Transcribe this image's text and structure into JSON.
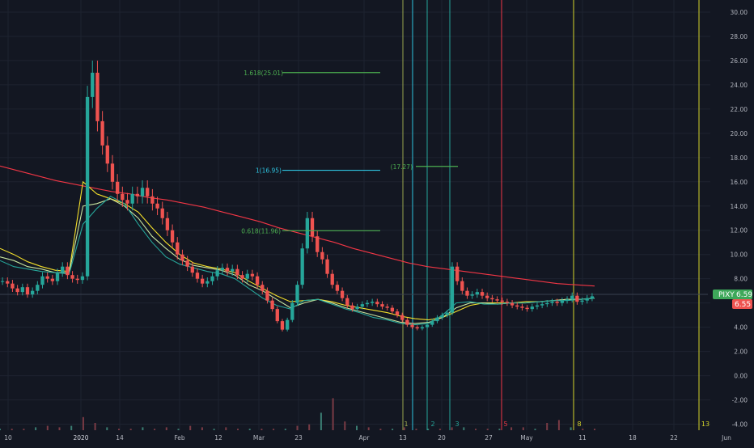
{
  "chart_data": {
    "type": "candlestick",
    "symbol": "PIXY",
    "last_price": "6.59",
    "prev_price": "6.55",
    "y_range": [
      -4.5,
      31
    ],
    "y_ticks": [
      "30.00",
      "28.00",
      "26.00",
      "24.00",
      "22.00",
      "20.00",
      "18.00",
      "16.00",
      "14.00",
      "12.00",
      "10.00",
      "8.00",
      "6.00",
      "4.00",
      "2.00",
      "0.00",
      "-2.00",
      "-4.00"
    ],
    "x_ticks": [
      "10",
      "2020",
      "14",
      "Feb",
      "12",
      "Mar",
      "23",
      "Apr",
      "13",
      "20",
      "27",
      "May",
      "11",
      "18",
      "22",
      "Jun"
    ],
    "grid": true,
    "price_path": [
      7.8,
      7.6,
      7.2,
      6.9,
      7.3,
      6.7,
      7.0,
      7.5,
      8.2,
      8.0,
      7.8,
      8.5,
      9.0,
      8.3,
      8.0,
      7.9,
      8.2,
      23,
      25,
      21,
      19,
      17.5,
      16,
      15,
      14.5,
      14.2,
      15,
      14.8,
      15.5,
      14.8,
      14.2,
      13.8,
      13,
      12,
      11,
      10,
      9.5,
      9.0,
      8.5,
      8.0,
      7.6,
      7.8,
      8.2,
      8.7,
      8.9,
      8.6,
      8.8,
      8.3,
      8.0,
      8.4,
      8.2,
      7.5,
      7.0,
      6.2,
      5.5,
      4.5,
      3.8,
      4.6,
      6.0,
      7.5,
      10.5,
      13.0,
      11.5,
      10.2,
      9.6,
      8.4,
      7.5,
      7.0,
      6.4,
      5.8,
      5.5,
      5.7,
      5.9,
      6.0,
      6.1,
      5.9,
      5.7,
      5.6,
      5.3,
      5.0,
      4.6,
      4.2,
      4.0,
      3.9,
      4.0,
      4.2,
      4.5,
      4.8,
      5.0,
      5.2,
      9.0,
      7.8,
      7.0,
      6.6,
      6.7,
      6.9,
      6.6,
      6.4,
      6.3,
      6.2,
      6.1,
      6.0,
      5.8,
      5.7,
      5.6,
      5.5,
      5.7,
      5.8,
      5.9,
      6.0,
      6.1,
      6.0,
      6.2,
      6.3,
      6.6,
      6.1,
      6.2,
      6.4,
      6.55
    ],
    "volume_spikes": [
      1,
      1,
      1,
      2,
      3,
      2,
      3,
      9,
      5,
      2,
      1,
      1,
      2,
      1,
      2,
      1,
      3,
      2,
      1,
      2,
      1,
      1,
      1,
      1,
      1,
      3,
      4,
      12,
      22,
      6,
      3,
      2,
      1,
      1,
      2,
      1,
      1,
      1,
      2,
      2,
      1,
      1,
      1,
      2,
      2,
      1,
      5,
      7,
      2,
      1,
      1
    ],
    "moving_averages": [
      {
        "color": "#f23645",
        "values": [
          17.3,
          16.9,
          16.5,
          16.1,
          15.8,
          15.5,
          15.2,
          15.0,
          14.7,
          14.5,
          14.2,
          13.9,
          13.5,
          13.1,
          12.7,
          12.2,
          11.8,
          11.4,
          11.0,
          10.5,
          10.1,
          9.7,
          9.3,
          9.0,
          8.8,
          8.6,
          8.4,
          8.2,
          8.0,
          7.8,
          7.6,
          7.5,
          7.4
        ]
      },
      {
        "color": "#f5e12b",
        "values": [
          10.5,
          10.0,
          9.4,
          9.0,
          8.7,
          8.6,
          16.0,
          15.0,
          14.6,
          14.2,
          13.5,
          12.2,
          11.0,
          10.0,
          9.3,
          9.0,
          8.8,
          8.5,
          7.8,
          7.2,
          6.6,
          6.1,
          6.2,
          6.3,
          6.1,
          5.8,
          5.6,
          5.4,
          5.2,
          4.9,
          4.7,
          4.6,
          4.8,
          5.3,
          5.8,
          6.0,
          6.0,
          6.0,
          6.1,
          6.1,
          6.2,
          6.3,
          6.3,
          6.4
        ]
      },
      {
        "color": "#c9e6a0",
        "values": [
          9.8,
          9.5,
          9.0,
          8.8,
          8.5,
          8.5,
          14.0,
          14.2,
          14.6,
          14.0,
          13.0,
          11.5,
          10.5,
          9.6,
          9.1,
          8.9,
          8.7,
          8.3,
          7.5,
          7.0,
          6.3,
          5.6,
          6.0,
          6.3,
          6.0,
          5.6,
          5.3,
          5.0,
          4.7,
          4.4,
          4.3,
          4.4,
          4.8,
          5.6,
          6.0,
          6.0,
          5.9,
          6.0,
          6.0,
          6.1,
          6.2,
          6.3,
          6.3,
          6.4
        ]
      },
      {
        "color": "#26a69a",
        "values": [
          9.5,
          9.0,
          8.8,
          8.6,
          8.5,
          8.4,
          12.5,
          13.8,
          14.8,
          14.2,
          12.5,
          11.0,
          9.8,
          9.2,
          8.9,
          8.6,
          8.4,
          8.0,
          7.2,
          6.4,
          5.8,
          5.5,
          6.2,
          6.3,
          5.9,
          5.5,
          5.2,
          4.8,
          4.6,
          4.3,
          4.2,
          4.3,
          5.0,
          6.0,
          6.1,
          5.9,
          5.9,
          6.0,
          6.0,
          6.1,
          6.2,
          6.2,
          6.3,
          6.4
        ]
      }
    ],
    "fib_levels": [
      {
        "label": "1.618(25.01)",
        "value": 25.01,
        "color": "#4caf50"
      },
      {
        "label": "1(16.95)",
        "value": 16.95,
        "color": "#2ec4e0"
      },
      {
        "label": "(17.27)",
        "value": 17.27,
        "color": "#4caf50"
      },
      {
        "label": "0.618(11.96)",
        "value": 11.96,
        "color": "#4caf50"
      }
    ],
    "fib_counts": [
      {
        "label": "1",
        "color": "#9aa64e"
      },
      {
        "label": "2",
        "color": "#26a69a"
      },
      {
        "label": "3",
        "color": "#26a69a"
      },
      {
        "label": "5",
        "color": "#f23645"
      },
      {
        "label": "8",
        "color": "#d4d42a"
      },
      {
        "label": "13",
        "color": "#d4d42a"
      }
    ]
  }
}
